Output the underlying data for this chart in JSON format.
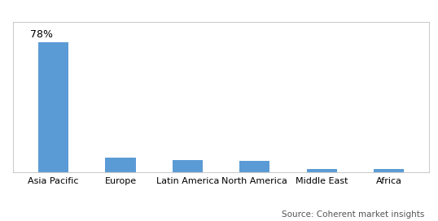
{
  "categories": [
    "Asia Pacific",
    "Europe",
    "Latin America",
    "North America",
    "Middle East",
    "Africa"
  ],
  "values": [
    78,
    9,
    7.5,
    7,
    2,
    1.8
  ],
  "bar_color": "#5B9BD5",
  "label_78": "78%",
  "source_text": "Source: Coherent market insights",
  "background_color": "#ffffff",
  "ylim": [
    0,
    90
  ],
  "label_fontsize": 9,
  "tick_fontsize": 8,
  "source_fontsize": 7.5,
  "bar_width": 0.45
}
